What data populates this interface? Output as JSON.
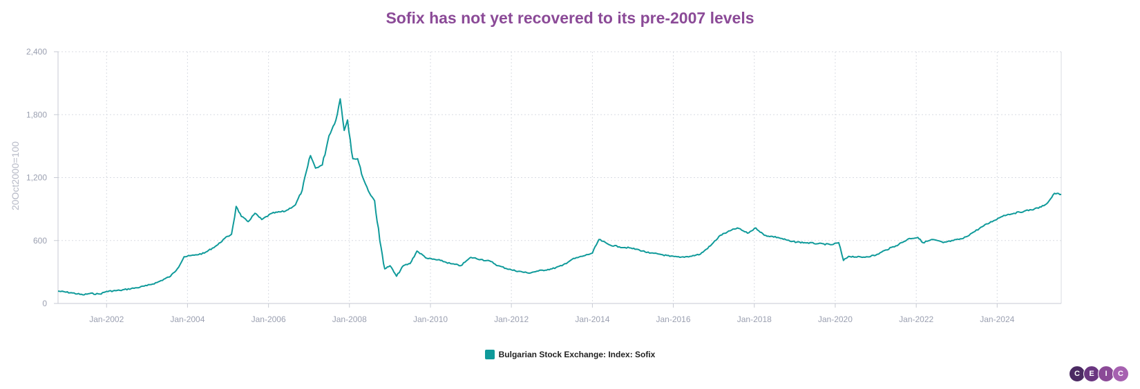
{
  "title": "Sofix has not yet recovered to its pre-2007 levels",
  "logo": {
    "letters": [
      "C",
      "E",
      "I",
      "C"
    ],
    "colors": [
      "#4b2a63",
      "#6a3680",
      "#8b4a97",
      "#a661b0"
    ]
  },
  "colors": {
    "series": "#0f9a9a",
    "grid": "#d8dbe2",
    "axis": "#c7cad3",
    "title": "#8b4a97"
  },
  "chart_data": {
    "type": "line",
    "title": "Sofix has not yet recovered to its pre-2007 levels",
    "ylabel": "20Oct2000=100",
    "xlabel": "",
    "ylim": [
      0,
      2400
    ],
    "xlim": [
      "2000-10-20",
      "2025-08-01"
    ],
    "yticks": [
      0,
      600,
      1200,
      1800,
      2400
    ],
    "ytick_labels": [
      "0",
      "600",
      "1,200",
      "1,800",
      "2,400"
    ],
    "xticks": [
      "2002-01-01",
      "2004-01-01",
      "2006-01-01",
      "2008-01-01",
      "2010-01-01",
      "2012-01-01",
      "2014-01-01",
      "2016-01-01",
      "2018-01-01",
      "2020-01-01",
      "2022-01-01",
      "2024-01-01"
    ],
    "xtick_labels": [
      "Jan-2002",
      "Jan-2004",
      "Jan-2006",
      "Jan-2008",
      "Jan-2010",
      "Jan-2012",
      "Jan-2014",
      "Jan-2016",
      "Jan-2018",
      "Jan-2020",
      "Jan-2022",
      "Jan-2024"
    ],
    "grid": true,
    "legend_position": "bottom-center",
    "series": [
      {
        "name": "Bulgarian Stock Exchange: Index: Sofix",
        "points": [
          [
            "2000-10-20",
            118
          ],
          [
            "2001-03-01",
            100
          ],
          [
            "2001-06-01",
            82
          ],
          [
            "2001-08-01",
            95
          ],
          [
            "2001-11-01",
            90
          ],
          [
            "2002-01-01",
            115
          ],
          [
            "2002-05-01",
            125
          ],
          [
            "2002-10-01",
            150
          ],
          [
            "2003-01-01",
            170
          ],
          [
            "2003-04-01",
            200
          ],
          [
            "2003-08-01",
            260
          ],
          [
            "2003-10-01",
            330
          ],
          [
            "2003-12-01",
            445
          ],
          [
            "2004-03-01",
            460
          ],
          [
            "2004-06-01",
            480
          ],
          [
            "2004-10-01",
            560
          ],
          [
            "2004-12-01",
            620
          ],
          [
            "2005-02-01",
            660
          ],
          [
            "2005-03-15",
            925
          ],
          [
            "2005-05-01",
            830
          ],
          [
            "2005-07-01",
            780
          ],
          [
            "2005-09-01",
            860
          ],
          [
            "2005-11-01",
            800
          ],
          [
            "2006-02-01",
            860
          ],
          [
            "2006-06-01",
            880
          ],
          [
            "2006-09-01",
            940
          ],
          [
            "2006-11-01",
            1080
          ],
          [
            "2007-01-15",
            1410
          ],
          [
            "2007-03-01",
            1290
          ],
          [
            "2007-05-01",
            1320
          ],
          [
            "2007-07-01",
            1600
          ],
          [
            "2007-09-01",
            1750
          ],
          [
            "2007-10-10",
            1950
          ],
          [
            "2007-11-15",
            1650
          ],
          [
            "2007-12-15",
            1750
          ],
          [
            "2008-02-01",
            1380
          ],
          [
            "2008-03-15",
            1380
          ],
          [
            "2008-05-01",
            1200
          ],
          [
            "2008-07-01",
            1050
          ],
          [
            "2008-08-15",
            980
          ],
          [
            "2008-10-01",
            600
          ],
          [
            "2008-11-15",
            330
          ],
          [
            "2009-01-01",
            360
          ],
          [
            "2009-03-01",
            260
          ],
          [
            "2009-05-01",
            360
          ],
          [
            "2009-07-01",
            380
          ],
          [
            "2009-09-01",
            500
          ],
          [
            "2009-12-01",
            430
          ],
          [
            "2010-04-01",
            410
          ],
          [
            "2010-07-01",
            380
          ],
          [
            "2010-10-01",
            360
          ],
          [
            "2011-01-01",
            440
          ],
          [
            "2011-04-01",
            420
          ],
          [
            "2011-07-01",
            400
          ],
          [
            "2011-09-01",
            360
          ],
          [
            "2012-01-01",
            320
          ],
          [
            "2012-06-01",
            290
          ],
          [
            "2012-09-01",
            310
          ],
          [
            "2013-01-01",
            330
          ],
          [
            "2013-04-01",
            360
          ],
          [
            "2013-07-01",
            420
          ],
          [
            "2013-10-01",
            450
          ],
          [
            "2014-01-01",
            480
          ],
          [
            "2014-03-01",
            610
          ],
          [
            "2014-06-01",
            560
          ],
          [
            "2014-09-01",
            540
          ],
          [
            "2014-12-01",
            530
          ],
          [
            "2015-03-01",
            510
          ],
          [
            "2015-06-01",
            480
          ],
          [
            "2015-09-01",
            470
          ],
          [
            "2015-12-01",
            450
          ],
          [
            "2016-03-01",
            440
          ],
          [
            "2016-06-01",
            450
          ],
          [
            "2016-09-01",
            470
          ],
          [
            "2016-12-01",
            550
          ],
          [
            "2017-03-01",
            650
          ],
          [
            "2017-05-01",
            680
          ],
          [
            "2017-08-01",
            720
          ],
          [
            "2017-11-01",
            670
          ],
          [
            "2018-01-15",
            720
          ],
          [
            "2018-04-01",
            650
          ],
          [
            "2018-08-01",
            630
          ],
          [
            "2018-12-01",
            590
          ],
          [
            "2019-04-01",
            580
          ],
          [
            "2019-08-01",
            570
          ],
          [
            "2019-12-01",
            560
          ],
          [
            "2020-02-01",
            580
          ],
          [
            "2020-03-15",
            410
          ],
          [
            "2020-05-01",
            450
          ],
          [
            "2020-09-01",
            440
          ],
          [
            "2021-01-01",
            460
          ],
          [
            "2021-04-01",
            510
          ],
          [
            "2021-07-01",
            550
          ],
          [
            "2021-11-01",
            620
          ],
          [
            "2022-01-15",
            630
          ],
          [
            "2022-03-01",
            580
          ],
          [
            "2022-06-01",
            610
          ],
          [
            "2022-09-01",
            580
          ],
          [
            "2022-12-01",
            600
          ],
          [
            "2023-03-01",
            620
          ],
          [
            "2023-06-01",
            680
          ],
          [
            "2023-09-01",
            740
          ],
          [
            "2023-12-01",
            790
          ],
          [
            "2024-03-01",
            840
          ],
          [
            "2024-06-01",
            860
          ],
          [
            "2024-09-01",
            880
          ],
          [
            "2024-12-01",
            900
          ],
          [
            "2025-02-01",
            920
          ],
          [
            "2025-04-01",
            960
          ],
          [
            "2025-06-01",
            1050
          ],
          [
            "2025-08-01",
            1040
          ]
        ]
      }
    ]
  }
}
